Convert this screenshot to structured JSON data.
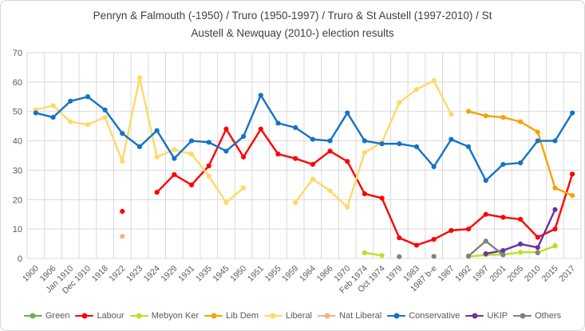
{
  "title_lines": [
    "Penryn & Falmouth (-1950) / Truro (1950-1997) / Truro & St Austell (1997-2010) / St",
    "Austell & Newquay (2010-) election results"
  ],
  "chart_data": {
    "type": "line",
    "title": "Penryn & Falmouth (-1950) / Truro (1950-1997) / Truro & St Austell (1997-2010) / St Austell & Newquay (2010-) election results",
    "xlabel": "",
    "ylabel": "",
    "ylim": [
      0,
      70
    ],
    "ytick_step": 10,
    "grid": true,
    "legend_position": "bottom",
    "axis_text_color": "#595959",
    "gridline_color": "#d9d9d9",
    "categories": [
      "1900",
      "1906",
      "Jan 1910",
      "Dec 1910",
      "1918",
      "1922",
      "1923",
      "1924",
      "1929",
      "1931",
      "1935",
      "1945",
      "1950",
      "1951",
      "1955",
      "1959",
      "1964",
      "1966",
      "1970",
      "Feb 1974",
      "Oct 1974",
      "1979",
      "1983",
      "1987 b-e",
      "1987",
      "1992",
      "1997",
      "2001",
      "2005",
      "2010",
      "2015",
      "2017"
    ],
    "series": [
      {
        "name": "Green",
        "color": "#70AD47",
        "values": [
          null,
          null,
          null,
          null,
          null,
          null,
          null,
          null,
          null,
          null,
          null,
          null,
          null,
          null,
          null,
          null,
          null,
          null,
          null,
          null,
          null,
          null,
          null,
          null,
          null,
          null,
          null,
          null,
          null,
          null,
          4.3,
          null
        ]
      },
      {
        "name": "Labour",
        "color": "#FF0000",
        "values": [
          null,
          null,
          null,
          null,
          null,
          16,
          null,
          22.5,
          28.5,
          25,
          31.5,
          44,
          34.5,
          44,
          35.5,
          34,
          32,
          36.5,
          33,
          22,
          20.5,
          7,
          4.5,
          6.5,
          9.5,
          10,
          15,
          14,
          13.3,
          7.2,
          10,
          28.7
        ]
      },
      {
        "name": "Mebyon Ker",
        "color": "#B9E122",
        "values": [
          null,
          null,
          null,
          null,
          null,
          null,
          null,
          null,
          null,
          null,
          null,
          null,
          null,
          null,
          null,
          null,
          null,
          null,
          null,
          1.9,
          1.0,
          null,
          null,
          null,
          null,
          0.6,
          1.2,
          1.3,
          2.1,
          2.1,
          4.2,
          null
        ]
      },
      {
        "name": "Lib Dem",
        "color": "#F5A300",
        "values": [
          null,
          null,
          null,
          null,
          null,
          null,
          null,
          null,
          null,
          null,
          null,
          null,
          null,
          null,
          null,
          null,
          null,
          null,
          null,
          null,
          null,
          null,
          null,
          null,
          null,
          50,
          48.5,
          48,
          46.5,
          43,
          24,
          21.4
        ]
      },
      {
        "name": "Liberal",
        "color": "#FFD966",
        "values": [
          50.5,
          52,
          46.5,
          45.5,
          48,
          33,
          61.5,
          34.5,
          37,
          35.5,
          28,
          19,
          24,
          null,
          null,
          19,
          27,
          23,
          17.5,
          36,
          39.5,
          53,
          57.5,
          60.5,
          49,
          null,
          null,
          null,
          null,
          null,
          null,
          null
        ]
      },
      {
        "name": "Nat Liberal",
        "color": "#F4B183",
        "values": [
          null,
          null,
          null,
          null,
          null,
          7.5,
          null,
          null,
          null,
          null,
          null,
          null,
          null,
          null,
          null,
          null,
          null,
          null,
          null,
          null,
          null,
          null,
          null,
          null,
          null,
          null,
          null,
          null,
          null,
          null,
          null,
          null
        ]
      },
      {
        "name": "Conservative",
        "color": "#1472C8",
        "values": [
          49.5,
          48,
          53.5,
          55,
          50.5,
          42.5,
          38,
          43.5,
          34,
          40,
          39.5,
          36.5,
          41.5,
          55.5,
          46,
          44.5,
          40.5,
          40,
          49.5,
          40,
          39,
          39,
          38,
          31.2,
          40.5,
          38,
          26.5,
          32,
          32.5,
          40,
          40,
          49.5
        ]
      },
      {
        "name": "UKIP",
        "color": "#7030A0",
        "values": [
          null,
          null,
          null,
          null,
          null,
          null,
          null,
          null,
          null,
          null,
          null,
          null,
          null,
          null,
          null,
          null,
          null,
          null,
          null,
          null,
          null,
          null,
          null,
          null,
          null,
          null,
          1.6,
          2.7,
          4.9,
          3.7,
          16.6,
          null
        ]
      },
      {
        "name": "Others",
        "color": "#808080",
        "values": [
          null,
          null,
          null,
          null,
          null,
          null,
          null,
          null,
          null,
          null,
          null,
          null,
          null,
          null,
          null,
          null,
          null,
          null,
          null,
          null,
          null,
          0.6,
          null,
          0.7,
          null,
          0.8,
          5.9,
          1.2,
          null,
          1.9,
          null,
          null
        ]
      }
    ]
  }
}
